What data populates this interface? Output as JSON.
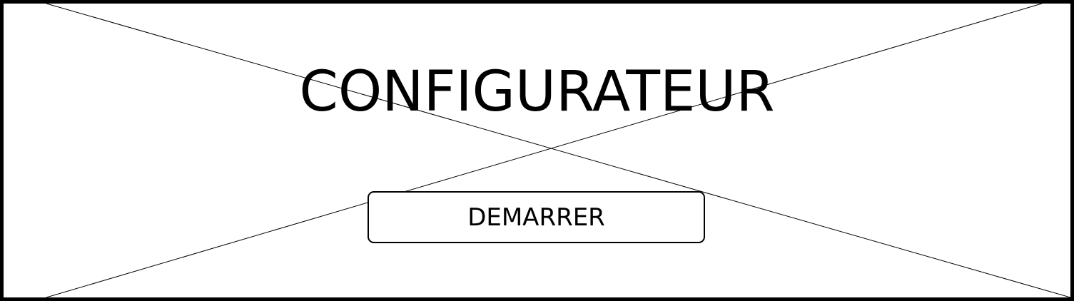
{
  "screen": {
    "title": "CONFIGURATEUR",
    "start_button_label": "DEMARRER"
  }
}
